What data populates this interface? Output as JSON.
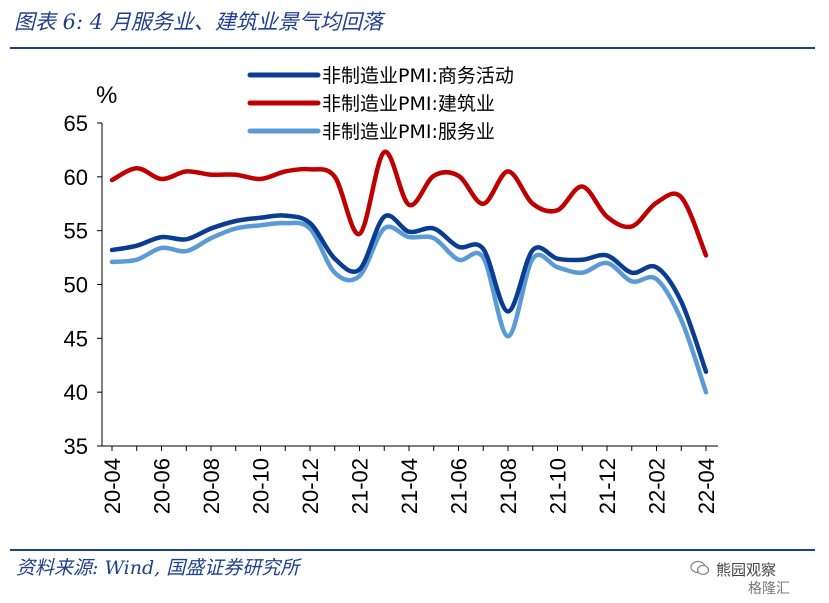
{
  "figure": {
    "title": "图表 6:  4 月服务业、建筑业景气均回落",
    "source": "资料来源: Wind, 国盛证券研究所"
  },
  "watermark": {
    "line1": "熊园观察",
    "line2": "格隆汇"
  },
  "chart_data": {
    "type": "line",
    "ylabel": "%",
    "ylim": [
      35,
      65
    ],
    "yticks": [
      35,
      40,
      45,
      50,
      55,
      60,
      65
    ],
    "x": [
      "20-04",
      "20-05",
      "20-06",
      "20-07",
      "20-08",
      "20-09",
      "20-10",
      "20-11",
      "20-12",
      "21-01",
      "21-02",
      "21-03",
      "21-04",
      "21-05",
      "21-06",
      "21-07",
      "21-08",
      "21-09",
      "21-10",
      "21-11",
      "21-12",
      "22-01",
      "22-02",
      "22-03",
      "22-04"
    ],
    "xtick_labels": [
      "20-04",
      "20-06",
      "20-08",
      "20-10",
      "20-12",
      "21-02",
      "21-04",
      "21-06",
      "21-08",
      "21-10",
      "21-12",
      "22-02",
      "22-04"
    ],
    "legend_position": "top-right",
    "grid": false,
    "series": [
      {
        "name": "非制造业PMI:商务活动",
        "color": "#0a3d91",
        "values": [
          53.2,
          53.6,
          54.4,
          54.2,
          55.2,
          55.9,
          56.2,
          56.4,
          55.7,
          52.4,
          51.4,
          56.3,
          54.9,
          55.2,
          53.5,
          53.3,
          47.5,
          53.2,
          52.4,
          52.3,
          52.7,
          51.1,
          51.6,
          48.4,
          41.9
        ]
      },
      {
        "name": "非制造业PMI:建筑业",
        "color": "#c00000",
        "values": [
          59.7,
          60.8,
          59.8,
          60.5,
          60.2,
          60.2,
          59.8,
          60.5,
          60.7,
          60.0,
          54.7,
          62.3,
          57.4,
          60.1,
          60.1,
          57.5,
          60.5,
          57.5,
          56.9,
          59.1,
          56.3,
          55.4,
          57.6,
          58.1,
          52.7
        ]
      },
      {
        "name": "非制造业PMI:服务业",
        "color": "#5b9bd5",
        "values": [
          52.1,
          52.3,
          53.4,
          53.1,
          54.3,
          55.2,
          55.5,
          55.7,
          55.2,
          51.1,
          50.8,
          55.2,
          54.4,
          54.3,
          52.3,
          52.5,
          45.2,
          52.4,
          51.6,
          51.1,
          52.0,
          50.3,
          50.5,
          46.7,
          40.0
        ]
      }
    ]
  }
}
